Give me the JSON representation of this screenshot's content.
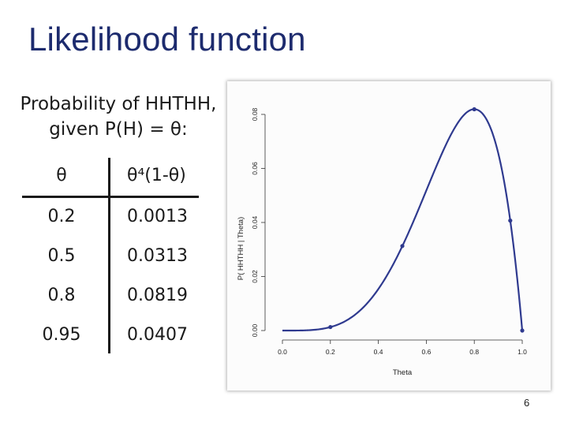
{
  "slide": {
    "title": "Likelihood function",
    "caption_line1": "Probability of HHTHH,",
    "caption_line2": "given P(H) = θ:",
    "page_number": "6"
  },
  "table": {
    "headers": [
      "θ",
      "θ⁴(1-θ)"
    ],
    "rows": [
      [
        "0.2",
        "0.0013"
      ],
      [
        "0.5",
        "0.0313"
      ],
      [
        "0.8",
        "0.0819"
      ],
      [
        "0.95",
        "0.0407"
      ]
    ]
  },
  "chart_data": {
    "type": "line",
    "title": "",
    "xlabel": "Theta",
    "ylabel": "P( HHTHH | Theta)",
    "xlim": [
      0.0,
      1.0
    ],
    "ylim": [
      0.0,
      0.08
    ],
    "xticks": [
      "0.0",
      "0.2",
      "0.4",
      "0.6",
      "0.8",
      "1.0"
    ],
    "yticks": [
      "0.00",
      "0.02",
      "0.04",
      "0.06",
      "0.08"
    ],
    "function": "theta^4 * (1 - theta)",
    "series": [
      {
        "name": "P( HHTHH | Theta)",
        "color": "#2f3a8f",
        "x": [
          0.0,
          0.2,
          0.5,
          0.8,
          0.95,
          1.0
        ],
        "y": [
          0.0,
          0.0013,
          0.0313,
          0.0819,
          0.0407,
          0.0
        ]
      }
    ],
    "points": [
      {
        "x": 0.2,
        "y": 0.0013
      },
      {
        "x": 0.5,
        "y": 0.0313
      },
      {
        "x": 0.8,
        "y": 0.0819
      },
      {
        "x": 0.95,
        "y": 0.0407
      },
      {
        "x": 1.0,
        "y": 0.0
      }
    ],
    "line_color": "#2f3a8f"
  }
}
